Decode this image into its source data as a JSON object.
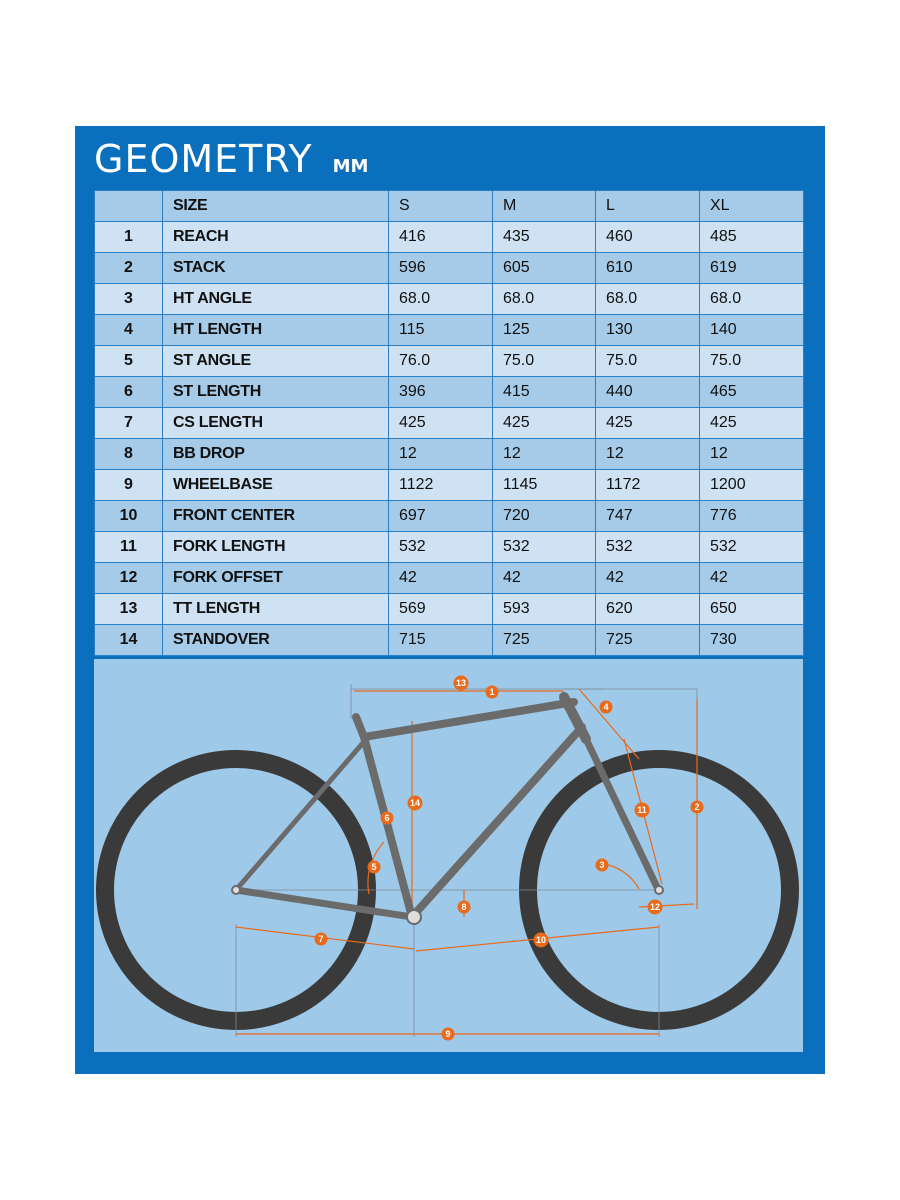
{
  "title": "GEOMETRY",
  "unit": "MM",
  "colors": {
    "panel": "#0a6fbd",
    "row_dark": "#a6cbe8",
    "row_light": "#cfe2f3",
    "diagram_bg": "#9fc9e8",
    "marker": "#e86a1a",
    "frame": "#6b6b6b",
    "tire": "#3a3a3a"
  },
  "table": {
    "header": {
      "num": "",
      "label": "SIZE",
      "sizes": [
        "S",
        "M",
        "L",
        "XL"
      ]
    },
    "rows": [
      {
        "num": "1",
        "label": "REACH",
        "values": [
          "416",
          "435",
          "460",
          "485"
        ]
      },
      {
        "num": "2",
        "label": "STACK",
        "values": [
          "596",
          "605",
          "610",
          "619"
        ]
      },
      {
        "num": "3",
        "label": "HT ANGLE",
        "values": [
          "68.0",
          "68.0",
          "68.0",
          "68.0"
        ]
      },
      {
        "num": "4",
        "label": "HT LENGTH",
        "values": [
          "115",
          "125",
          "130",
          "140"
        ]
      },
      {
        "num": "5",
        "label": "ST ANGLE",
        "values": [
          "76.0",
          "75.0",
          "75.0",
          "75.0"
        ]
      },
      {
        "num": "6",
        "label": "ST LENGTH",
        "values": [
          "396",
          "415",
          "440",
          "465"
        ]
      },
      {
        "num": "7",
        "label": "CS LENGTH",
        "values": [
          "425",
          "425",
          "425",
          "425"
        ]
      },
      {
        "num": "8",
        "label": "BB DROP",
        "values": [
          "12",
          "12",
          "12",
          "12"
        ]
      },
      {
        "num": "9",
        "label": "WHEELBASE",
        "values": [
          "1122",
          "1145",
          "1172",
          "1200"
        ]
      },
      {
        "num": "10",
        "label": "FRONT CENTER",
        "values": [
          "697",
          "720",
          "747",
          "776"
        ]
      },
      {
        "num": "11",
        "label": "FORK LENGTH",
        "values": [
          "532",
          "532",
          "532",
          "532"
        ]
      },
      {
        "num": "12",
        "label": "FORK OFFSET",
        "values": [
          "42",
          "42",
          "42",
          "42"
        ]
      },
      {
        "num": "13",
        "label": "TT LENGTH",
        "values": [
          "569",
          "593",
          "620",
          "650"
        ]
      },
      {
        "num": "14",
        "label": "STANDOVER",
        "values": [
          "715",
          "725",
          "725",
          "730"
        ]
      }
    ]
  },
  "diagram": {
    "markers": [
      "1",
      "2",
      "3",
      "4",
      "5",
      "6",
      "7",
      "8",
      "9",
      "10",
      "11",
      "12",
      "13",
      "14"
    ]
  }
}
